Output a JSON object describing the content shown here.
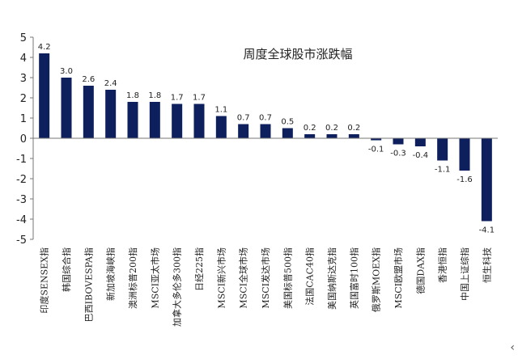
{
  "chart_data": {
    "type": "bar",
    "title": "周度全球股市涨跌幅",
    "categories": [
      "印度SENSEX指",
      "韩国综合指",
      "巴西IBOVESPA指",
      "新加坡海峡指",
      "澳洲标普200指",
      "MSCI亚太市场",
      "加拿大多伦多300指",
      "日经225指",
      "MSCI新兴市场",
      "MSCI全球市场",
      "MSCI发达市场",
      "美国标普500指",
      "法国CAC40指",
      "美国纳斯达克指",
      "英国富时100指",
      "俄罗斯MOEX指",
      "MSCI欧盟市场",
      "德国DAX指",
      "香港恒指",
      "中国上证综指",
      "恒生科技"
    ],
    "values": [
      4.2,
      3.0,
      2.6,
      2.4,
      1.8,
      1.8,
      1.7,
      1.7,
      1.1,
      0.7,
      0.7,
      0.5,
      0.2,
      0.2,
      0.2,
      -0.1,
      -0.3,
      -0.4,
      -1.1,
      -1.6,
      -4.1
    ],
    "value_labels": [
      "4.2",
      "3.0",
      "2.6",
      "2.4",
      "1.8",
      "1.8",
      "1.7",
      "1.7",
      "1.1",
      "0.7",
      "0.7",
      "0.5",
      "0.2",
      "0.2",
      "0.2",
      "-0.1",
      "-0.3",
      "-0.4",
      "-1.1",
      "-1.6",
      "-4.1"
    ],
    "ylim": [
      -5,
      5
    ],
    "yticks": [
      -5,
      -4,
      -3,
      -2,
      -1,
      0,
      1,
      2,
      3,
      4,
      5
    ],
    "ytick_labels": [
      "-5",
      "-4",
      "-3",
      "-2",
      "-1",
      "0",
      "1",
      "2",
      "3",
      "4",
      "5"
    ],
    "bar_color": "#0d1f5c",
    "grid": false,
    "legend": "none"
  },
  "icons": {
    "corner": "chevron-left-icon"
  },
  "corner_glyph": "‹"
}
